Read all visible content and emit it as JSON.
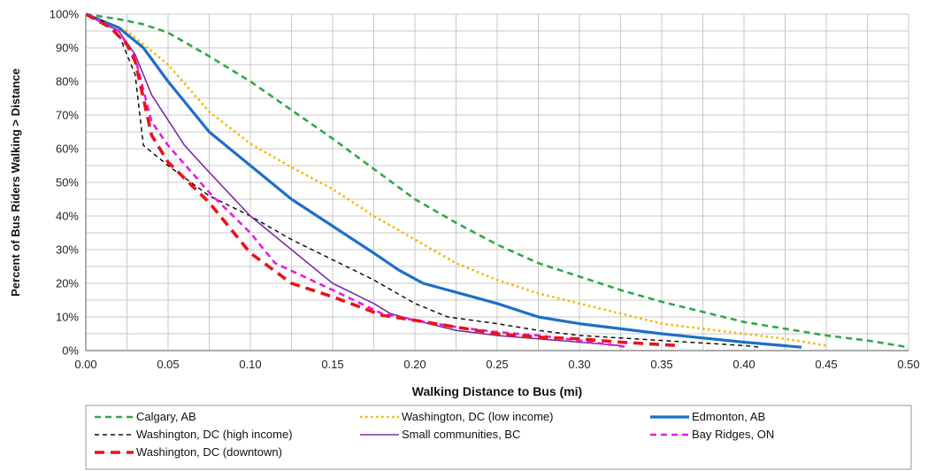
{
  "chart_data": {
    "type": "line",
    "xlabel": "Walking Distance to Bus (mi)",
    "ylabel": "Percent of Bus Riders Walking > Distance",
    "xlim": [
      0,
      0.5
    ],
    "ylim": [
      0,
      100
    ],
    "x_ticks": [
      "0.00",
      "0.05",
      "0.10",
      "0.15",
      "0.20",
      "0.25",
      "0.30",
      "0.35",
      "0.40",
      "0.45",
      "0.50"
    ],
    "y_ticks": [
      "0%",
      "10%",
      "20%",
      "30%",
      "40%",
      "50%",
      "60%",
      "70%",
      "80%",
      "90%",
      "100%"
    ],
    "grid": true,
    "legend_position": "bottom",
    "series": [
      {
        "name": "Calgary, AB",
        "color": "#2ea84a",
        "style": "dashed",
        "points": [
          [
            0,
            100
          ],
          [
            0.02,
            98.5
          ],
          [
            0.035,
            97
          ],
          [
            0.05,
            94.5
          ],
          [
            0.075,
            87.5
          ],
          [
            0.1,
            80
          ],
          [
            0.125,
            71.5
          ],
          [
            0.15,
            63
          ],
          [
            0.175,
            54
          ],
          [
            0.2,
            45
          ],
          [
            0.225,
            38
          ],
          [
            0.25,
            31.5
          ],
          [
            0.275,
            26
          ],
          [
            0.3,
            22
          ],
          [
            0.325,
            18
          ],
          [
            0.35,
            14.5
          ],
          [
            0.375,
            11.5
          ],
          [
            0.4,
            8.5
          ],
          [
            0.425,
            6.5
          ],
          [
            0.45,
            4.5
          ],
          [
            0.475,
            3
          ],
          [
            0.5,
            1
          ]
        ]
      },
      {
        "name": "Washington, DC (low income)",
        "color": "#f5b800",
        "style": "dotted",
        "points": [
          [
            0,
            100
          ],
          [
            0.025,
            95
          ],
          [
            0.05,
            85
          ],
          [
            0.075,
            71
          ],
          [
            0.1,
            61.5
          ],
          [
            0.125,
            54.5
          ],
          [
            0.15,
            48
          ],
          [
            0.175,
            40
          ],
          [
            0.2,
            33
          ],
          [
            0.225,
            26
          ],
          [
            0.25,
            21
          ],
          [
            0.275,
            17
          ],
          [
            0.3,
            14
          ],
          [
            0.325,
            11
          ],
          [
            0.35,
            8
          ],
          [
            0.375,
            6.5
          ],
          [
            0.4,
            5
          ],
          [
            0.425,
            3.5
          ],
          [
            0.45,
            1.5
          ]
        ]
      },
      {
        "name": "Edmonton, AB",
        "color": "#1f6fc5",
        "style": "solid-thick",
        "points": [
          [
            0,
            100
          ],
          [
            0.02,
            96
          ],
          [
            0.035,
            90
          ],
          [
            0.05,
            80
          ],
          [
            0.075,
            65
          ],
          [
            0.1,
            55
          ],
          [
            0.125,
            45
          ],
          [
            0.15,
            37
          ],
          [
            0.175,
            29
          ],
          [
            0.19,
            24
          ],
          [
            0.205,
            20
          ],
          [
            0.25,
            14
          ],
          [
            0.275,
            10
          ],
          [
            0.3,
            8
          ],
          [
            0.35,
            5
          ],
          [
            0.4,
            2.5
          ],
          [
            0.435,
            1
          ]
        ]
      },
      {
        "name": "Washington, DC (high income)",
        "color": "#111111",
        "style": "dashed-thin",
        "points": [
          [
            0,
            100
          ],
          [
            0.01,
            98
          ],
          [
            0.02,
            94
          ],
          [
            0.03,
            82
          ],
          [
            0.035,
            61
          ],
          [
            0.05,
            55
          ],
          [
            0.075,
            46
          ],
          [
            0.1,
            40
          ],
          [
            0.125,
            33
          ],
          [
            0.15,
            27
          ],
          [
            0.175,
            21
          ],
          [
            0.2,
            14
          ],
          [
            0.22,
            10
          ],
          [
            0.25,
            8
          ],
          [
            0.275,
            6
          ],
          [
            0.3,
            4.5
          ],
          [
            0.35,
            3
          ],
          [
            0.4,
            1.5
          ],
          [
            0.41,
            1
          ]
        ]
      },
      {
        "name": "Small communities, BC",
        "color": "#7a2fa3",
        "style": "solid",
        "points": [
          [
            0,
            100
          ],
          [
            0.02,
            95
          ],
          [
            0.03,
            88
          ],
          [
            0.04,
            76
          ],
          [
            0.06,
            61
          ],
          [
            0.075,
            53
          ],
          [
            0.1,
            40
          ],
          [
            0.125,
            30
          ],
          [
            0.15,
            20
          ],
          [
            0.175,
            14
          ],
          [
            0.185,
            11
          ],
          [
            0.2,
            9
          ],
          [
            0.225,
            6
          ],
          [
            0.25,
            4.5
          ],
          [
            0.275,
            3.5
          ],
          [
            0.3,
            2.5
          ],
          [
            0.325,
            1.5
          ]
        ]
      },
      {
        "name": "Bay Ridges, ON",
        "color": "#e61ce0",
        "style": "dashed",
        "points": [
          [
            0,
            100
          ],
          [
            0.02,
            95
          ],
          [
            0.03,
            87
          ],
          [
            0.04,
            68
          ],
          [
            0.05,
            61
          ],
          [
            0.075,
            47
          ],
          [
            0.1,
            35
          ],
          [
            0.115,
            26
          ],
          [
            0.15,
            18
          ],
          [
            0.18,
            11
          ],
          [
            0.2,
            9
          ],
          [
            0.225,
            7
          ],
          [
            0.25,
            5.5
          ],
          [
            0.275,
            4.5
          ],
          [
            0.3,
            3
          ],
          [
            0.33,
            1
          ]
        ]
      },
      {
        "name": "Washington, DC (downtown)",
        "color": "#e8141c",
        "style": "dashed-thick",
        "points": [
          [
            0,
            100
          ],
          [
            0.015,
            96
          ],
          [
            0.025,
            91
          ],
          [
            0.03,
            86
          ],
          [
            0.04,
            64
          ],
          [
            0.05,
            56
          ],
          [
            0.075,
            44
          ],
          [
            0.1,
            29
          ],
          [
            0.125,
            20
          ],
          [
            0.15,
            16
          ],
          [
            0.18,
            10.5
          ],
          [
            0.2,
            9
          ],
          [
            0.225,
            7
          ],
          [
            0.25,
            5
          ],
          [
            0.275,
            4
          ],
          [
            0.3,
            3.5
          ],
          [
            0.325,
            2.5
          ],
          [
            0.36,
            1.5
          ]
        ]
      }
    ]
  }
}
